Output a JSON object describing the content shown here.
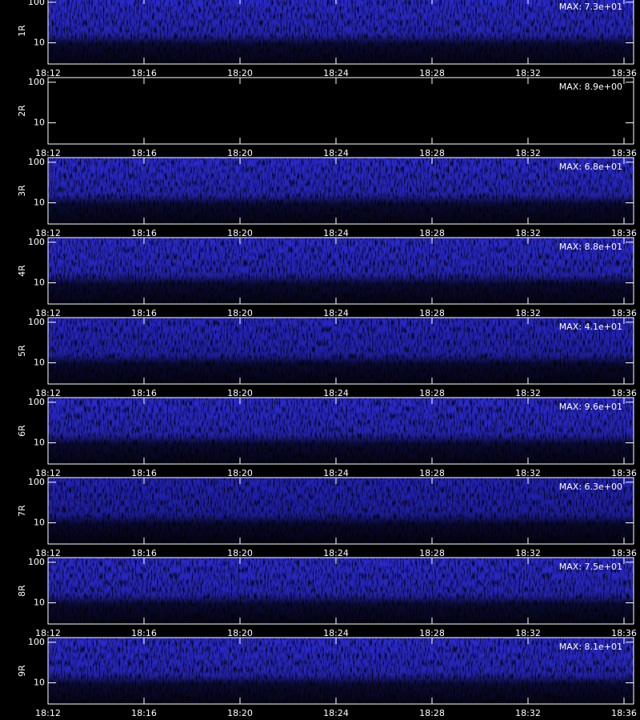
{
  "chart_data": [
    {
      "type": "spectrogram",
      "ylabel": "1R",
      "annotation": "MAX: 7.3e+01",
      "color": "#2a2ad0",
      "log_y": true,
      "ylim": [
        3,
        130
      ],
      "yticks": [
        10,
        100
      ],
      "xticks": [
        "18:12",
        "18:16",
        "18:20",
        "18:24",
        "18:28",
        "18:32",
        "18:36"
      ]
    },
    {
      "type": "spectrogram",
      "ylabel": "2R",
      "annotation": "MAX: 8.9e+00",
      "color": "#000000",
      "log_y": true,
      "ylim": [
        3,
        130
      ],
      "yticks": [
        10,
        100
      ],
      "xticks": [
        "18:12",
        "18:16",
        "18:20",
        "18:24",
        "18:28",
        "18:32",
        "18:36"
      ]
    },
    {
      "type": "spectrogram",
      "ylabel": "3R",
      "annotation": "MAX: 6.8e+01",
      "color": "#2a2ad0",
      "log_y": true,
      "ylim": [
        3,
        130
      ],
      "yticks": [
        10,
        100
      ],
      "xticks": [
        "18:12",
        "18:16",
        "18:20",
        "18:24",
        "18:28",
        "18:32",
        "18:36"
      ]
    },
    {
      "type": "spectrogram",
      "ylabel": "4R",
      "annotation": "MAX: 8.8e+01",
      "color": "#2a2ad0",
      "log_y": true,
      "ylim": [
        3,
        130
      ],
      "yticks": [
        10,
        100
      ],
      "xticks": [
        "18:12",
        "18:16",
        "18:20",
        "18:24",
        "18:28",
        "18:32",
        "18:36"
      ]
    },
    {
      "type": "spectrogram",
      "ylabel": "5R",
      "annotation": "MAX: 4.1e+01",
      "color": "#2626c4",
      "log_y": true,
      "ylim": [
        3,
        130
      ],
      "yticks": [
        10,
        100
      ],
      "xticks": [
        "18:12",
        "18:16",
        "18:20",
        "18:24",
        "18:28",
        "18:32",
        "18:36"
      ]
    },
    {
      "type": "spectrogram",
      "ylabel": "6R",
      "annotation": "MAX: 9.6e+01",
      "color": "#2a2ad0",
      "log_y": true,
      "ylim": [
        3,
        130
      ],
      "yticks": [
        10,
        100
      ],
      "xticks": [
        "18:12",
        "18:16",
        "18:20",
        "18:24",
        "18:28",
        "18:32",
        "18:36"
      ]
    },
    {
      "type": "spectrogram",
      "ylabel": "7R",
      "annotation": "MAX: 6.3e+00",
      "color": "#2222b8",
      "log_y": true,
      "ylim": [
        3,
        130
      ],
      "yticks": [
        10,
        100
      ],
      "xticks": [
        "18:12",
        "18:16",
        "18:20",
        "18:24",
        "18:28",
        "18:32",
        "18:36"
      ]
    },
    {
      "type": "spectrogram",
      "ylabel": "8R",
      "annotation": "MAX: 7.5e+01",
      "color": "#2a2ad0",
      "log_y": true,
      "ylim": [
        3,
        130
      ],
      "yticks": [
        10,
        100
      ],
      "xticks": [
        "18:12",
        "18:16",
        "18:20",
        "18:24",
        "18:28",
        "18:32",
        "18:36"
      ]
    },
    {
      "type": "spectrogram",
      "ylabel": "9R",
      "annotation": "MAX: 8.1e+01",
      "color": "#2a2ad0",
      "log_y": true,
      "ylim": [
        3,
        130
      ],
      "yticks": [
        10,
        100
      ],
      "xticks": [
        "18:12",
        "18:16",
        "18:20",
        "18:24",
        "18:28",
        "18:32",
        "18:36"
      ]
    }
  ]
}
